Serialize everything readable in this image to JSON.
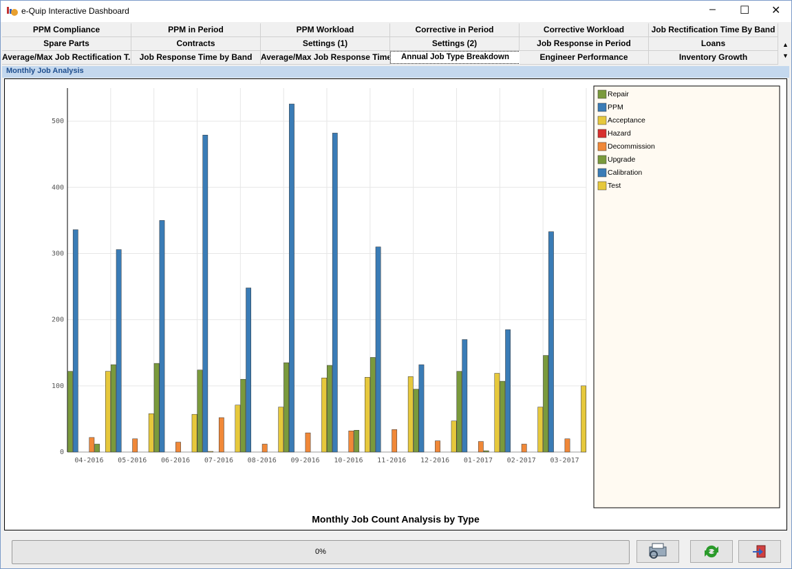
{
  "window": {
    "title": "e-Quip Interactive Dashboard"
  },
  "tabs": [
    [
      "PPM Compliance",
      "PPM in Period",
      "PPM Workload",
      "Corrective in Period",
      "Corrective Workload",
      "Job Rectification Time By Band"
    ],
    [
      "Spare Parts",
      "Contracts",
      "Settings (1)",
      "Settings (2)",
      "Job Response in Period",
      "Loans"
    ],
    [
      "Average/Max Job Rectification T...",
      "Job Response Time by Band",
      "Average/Max Job Response Time",
      "Annual Job Type Breakdown",
      "Engineer Performance",
      "Inventory Growth"
    ]
  ],
  "panel": {
    "title": "Monthly Job Analysis"
  },
  "chart_data": {
    "type": "bar",
    "title": "Monthly Job Count Analysis by Type",
    "categories": [
      "04-2016",
      "05-2016",
      "06-2016",
      "07-2016",
      "08-2016",
      "09-2016",
      "10-2016",
      "11-2016",
      "12-2016",
      "01-2017",
      "02-2017",
      "03-2017"
    ],
    "series": [
      {
        "name": "Repair",
        "color": "#7a9a3c",
        "values": [
          122,
          132,
          134,
          124,
          110,
          135,
          131,
          143,
          95,
          122,
          107,
          146
        ]
      },
      {
        "name": "PPM",
        "color": "#3a7cb6",
        "values": [
          336,
          306,
          350,
          479,
          248,
          526,
          482,
          310,
          132,
          170,
          185,
          333
        ]
      },
      {
        "name": "Acceptance",
        "color": "#e6c83c",
        "values": [
          0,
          0,
          0,
          1,
          0,
          0,
          0,
          0,
          0,
          0,
          0,
          0
        ]
      },
      {
        "name": "Hazard",
        "color": "#d8302e",
        "values": [
          0,
          0,
          0,
          0,
          0,
          0,
          0,
          0,
          0,
          0,
          0,
          0
        ]
      },
      {
        "name": "Decommission",
        "color": "#f08838",
        "values": [
          22,
          20,
          15,
          52,
          12,
          29,
          32,
          34,
          17,
          16,
          12,
          20
        ]
      },
      {
        "name": "Upgrade",
        "color": "#7a9a3c",
        "values": [
          12,
          0,
          0,
          0,
          0,
          0,
          33,
          0,
          0,
          2,
          0,
          0
        ]
      },
      {
        "name": "Calibration",
        "color": "#3a7cb6",
        "values": [
          0,
          0,
          0,
          0,
          0,
          0,
          0,
          0,
          0,
          0,
          0,
          0
        ]
      },
      {
        "name": "Test",
        "color": "#e6c83c",
        "values": [
          122,
          58,
          57,
          71,
          68,
          112,
          113,
          114,
          47,
          119,
          68,
          100
        ]
      }
    ],
    "ylim": [
      0,
      550
    ],
    "yticks": [
      0,
      100,
      200,
      300,
      400,
      500
    ],
    "grid": true
  },
  "progress": {
    "label": "0%"
  }
}
